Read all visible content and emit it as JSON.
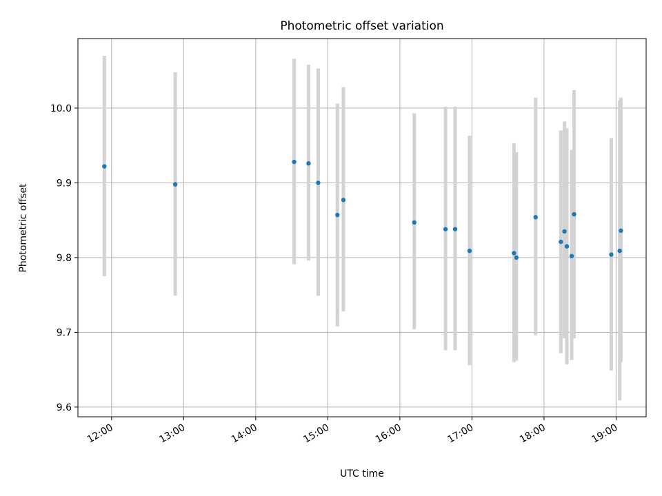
{
  "chart_data": {
    "type": "scatter",
    "title": "Photometric offset variation",
    "xlabel": "UTC time",
    "ylabel": "Photometric offset",
    "x_ticks": [
      "12:00",
      "13:00",
      "14:00",
      "15:00",
      "16:00",
      "17:00",
      "18:00",
      "19:00"
    ],
    "y_ticks": [
      "9.6",
      "9.7",
      "9.8",
      "9.9",
      "10.0"
    ],
    "xlim": [
      "11:32",
      "19:25"
    ],
    "ylim": [
      9.587,
      10.093
    ],
    "grid": true,
    "errorbar_color": "#d3d3d3",
    "point_color": "#1f77b4",
    "points": [
      {
        "x": "11:54",
        "y": 9.922,
        "low": 9.775,
        "high": 10.07
      },
      {
        "x": "12:53",
        "y": 9.898,
        "low": 9.749,
        "high": 10.048
      },
      {
        "x": "14:32",
        "y": 9.928,
        "low": 9.791,
        "high": 10.066
      },
      {
        "x": "14:44",
        "y": 9.926,
        "low": 9.796,
        "high": 10.058
      },
      {
        "x": "14:52",
        "y": 9.9,
        "low": 9.749,
        "high": 10.053
      },
      {
        "x": "15:08",
        "y": 9.857,
        "low": 9.708,
        "high": 10.006
      },
      {
        "x": "15:13",
        "y": 9.877,
        "low": 9.728,
        "high": 10.028
      },
      {
        "x": "16:12",
        "y": 9.847,
        "low": 9.704,
        "high": 9.993
      },
      {
        "x": "16:38",
        "y": 9.838,
        "low": 9.676,
        "high": 10.002
      },
      {
        "x": "16:46",
        "y": 9.838,
        "low": 9.676,
        "high": 10.002
      },
      {
        "x": "16:58",
        "y": 9.809,
        "low": 9.656,
        "high": 9.963
      },
      {
        "x": "17:35",
        "y": 9.806,
        "low": 9.66,
        "high": 9.953
      },
      {
        "x": "17:37",
        "y": 9.8,
        "low": 9.662,
        "high": 9.941
      },
      {
        "x": "17:53",
        "y": 9.854,
        "low": 9.696,
        "high": 10.014
      },
      {
        "x": "18:14",
        "y": 9.821,
        "low": 9.672,
        "high": 9.97
      },
      {
        "x": "18:17",
        "y": 9.835,
        "low": 9.692,
        "high": 9.982
      },
      {
        "x": "18:19",
        "y": 9.815,
        "low": 9.657,
        "high": 9.973
      },
      {
        "x": "18:23",
        "y": 9.802,
        "low": 9.663,
        "high": 9.944
      },
      {
        "x": "18:25",
        "y": 9.858,
        "low": 9.692,
        "high": 10.024
      },
      {
        "x": "18:56",
        "y": 9.804,
        "low": 9.649,
        "high": 9.96
      },
      {
        "x": "19:03",
        "y": 9.809,
        "low": 9.609,
        "high": 10.01
      },
      {
        "x": "19:04",
        "y": 9.836,
        "low": 9.66,
        "high": 10.014
      }
    ]
  }
}
